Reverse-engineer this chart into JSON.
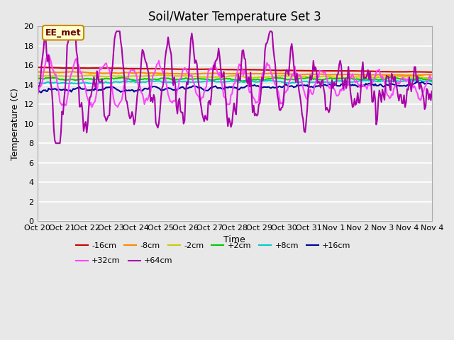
{
  "title": "Soil/Water Temperature Set 3",
  "xlabel": "Time",
  "ylabel": "Temperature (C)",
  "ylim": [
    0,
    20
  ],
  "yticks": [
    0,
    2,
    4,
    6,
    8,
    10,
    12,
    14,
    16,
    18,
    20
  ],
  "plot_bg_color": "#e8e8e8",
  "series_keys": [
    "-16cm",
    "-8cm",
    "-2cm",
    "+2cm",
    "+8cm",
    "+16cm",
    "+32cm",
    "+64cm"
  ],
  "series_colors": [
    "#cc0000",
    "#ff8800",
    "#cccc00",
    "#00cc00",
    "#00cccc",
    "#000099",
    "#ff44ff",
    "#aa00aa"
  ],
  "series_lw": [
    1.5,
    1.5,
    1.5,
    1.5,
    1.5,
    1.5,
    1.5,
    1.5
  ],
  "xtick_labels": [
    "Oct 20",
    "Oct 21",
    "Oct 22",
    "Oct 23",
    "Oct 24",
    "Oct 25",
    "Oct 26",
    "Oct 27",
    "Oct 28",
    "Oct 29",
    "Oct 30",
    "Oct 31",
    "Nov 1",
    "Nov 2",
    "Nov 3",
    "Nov 4",
    "Nov 4"
  ],
  "n_xticks": 17,
  "annotation_text": "EE_met",
  "annotation_bg": "#ffffcc",
  "annotation_border": "#cc8800"
}
